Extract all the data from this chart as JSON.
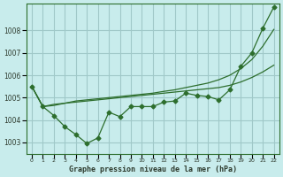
{
  "title": "Graphe pression niveau de la mer (hPa)",
  "background_color": "#c8ecec",
  "grid_color": "#a0c8c8",
  "line_color": "#2d6e2d",
  "ylim": [
    1002.5,
    1009.2
  ],
  "yticks": [
    1003,
    1004,
    1005,
    1006,
    1007,
    1008
  ],
  "y_detailed": [
    1005.5,
    1004.6,
    1004.2,
    1003.7,
    1003.35,
    1002.95,
    1003.2,
    1004.35,
    1004.15,
    1004.6,
    1004.6,
    1004.6,
    1004.8,
    1004.85,
    1005.2,
    1005.1,
    1005.05,
    1004.9,
    1005.35,
    1006.4,
    1007.0,
    1008.1,
    1009.05
  ],
  "y_smooth1": [
    1005.5,
    1004.6,
    1004.65,
    1004.75,
    1004.85,
    1004.9,
    1004.95,
    1005.0,
    1005.05,
    1005.1,
    1005.15,
    1005.2,
    1005.28,
    1005.35,
    1005.45,
    1005.55,
    1005.65,
    1005.8,
    1006.0,
    1006.3,
    1006.7,
    1007.3,
    1008.05
  ],
  "y_smooth2": [
    1005.5,
    1004.6,
    1004.7,
    1004.75,
    1004.8,
    1004.85,
    1004.9,
    1004.95,
    1005.0,
    1005.05,
    1005.1,
    1005.15,
    1005.2,
    1005.25,
    1005.3,
    1005.35,
    1005.4,
    1005.45,
    1005.55,
    1005.7,
    1005.9,
    1006.15,
    1006.45
  ],
  "marker_size": 2.5,
  "tick_color": "#2d3a2d"
}
